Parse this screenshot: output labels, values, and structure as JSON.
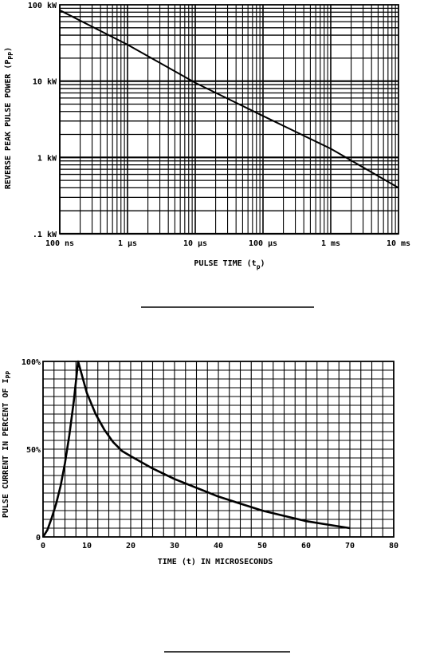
{
  "chart_data": [
    {
      "type": "line",
      "xscale": "log",
      "yscale": "log",
      "xlabel": "PULSE TIME (t",
      "xlabel_sub": "p",
      "xlabel_end": ")",
      "ylabel": "REVERSE PEAK PULSE POWER (P",
      "ylabel_sub": "PP",
      "ylabel_end": ")",
      "xlim": [
        1e-07,
        0.01
      ],
      "ylim": [
        100,
        100000
      ],
      "x_ticks": [
        {
          "value": 1e-07,
          "label": "100 ns"
        },
        {
          "value": 1e-06,
          "label": "1 μs"
        },
        {
          "value": 1e-05,
          "label": "10 μs"
        },
        {
          "value": 0.0001,
          "label": "100 μs"
        },
        {
          "value": 0.001,
          "label": "1 ms"
        },
        {
          "value": 0.01,
          "label": "10 ms"
        }
      ],
      "y_ticks": [
        {
          "value": 100000,
          "label": "100 kW"
        },
        {
          "value": 10000,
          "label": "10 kW"
        },
        {
          "value": 1000,
          "label": "1 kW"
        },
        {
          "value": 100,
          "label": ".1 kW"
        }
      ],
      "grid": true,
      "series": [
        {
          "x": [
            1e-07,
            1e-06,
            1e-05,
            0.0001,
            0.001,
            0.01
          ],
          "y": [
            85000,
            30000,
            9500,
            3500,
            1300,
            400
          ]
        }
      ]
    },
    {
      "type": "line",
      "xlabel": "TIME (t) IN MICROSECONDS",
      "ylabel": "PULSE CURRENT IN PERCENT OF I",
      "ylabel_sub": "PP",
      "xlim": [
        0,
        80
      ],
      "ylim": [
        0,
        100
      ],
      "x_ticks": [
        {
          "value": 0,
          "label": "0"
        },
        {
          "value": 10,
          "label": "10"
        },
        {
          "value": 20,
          "label": "20"
        },
        {
          "value": 30,
          "label": "30"
        },
        {
          "value": 40,
          "label": "40"
        },
        {
          "value": 50,
          "label": "50"
        },
        {
          "value": 60,
          "label": "60"
        },
        {
          "value": 70,
          "label": "70"
        },
        {
          "value": 80,
          "label": "80"
        }
      ],
      "y_ticks": [
        {
          "value": 0,
          "label": "0"
        },
        {
          "value": 50,
          "label": "50%"
        },
        {
          "value": 100,
          "label": "100%"
        }
      ],
      "grid": true,
      "series": [
        {
          "x": [
            0,
            1,
            2,
            3,
            4,
            5,
            6,
            7,
            8,
            9,
            10,
            12,
            14,
            16,
            18,
            20,
            25,
            30,
            35,
            40,
            45,
            50,
            55,
            60,
            65,
            70
          ],
          "y": [
            0,
            4,
            11,
            19,
            29,
            42,
            58,
            77,
            100,
            91,
            82,
            70,
            61,
            54,
            49,
            46,
            39,
            33,
            28,
            23,
            19,
            15,
            12,
            9,
            7,
            5
          ]
        }
      ]
    }
  ]
}
